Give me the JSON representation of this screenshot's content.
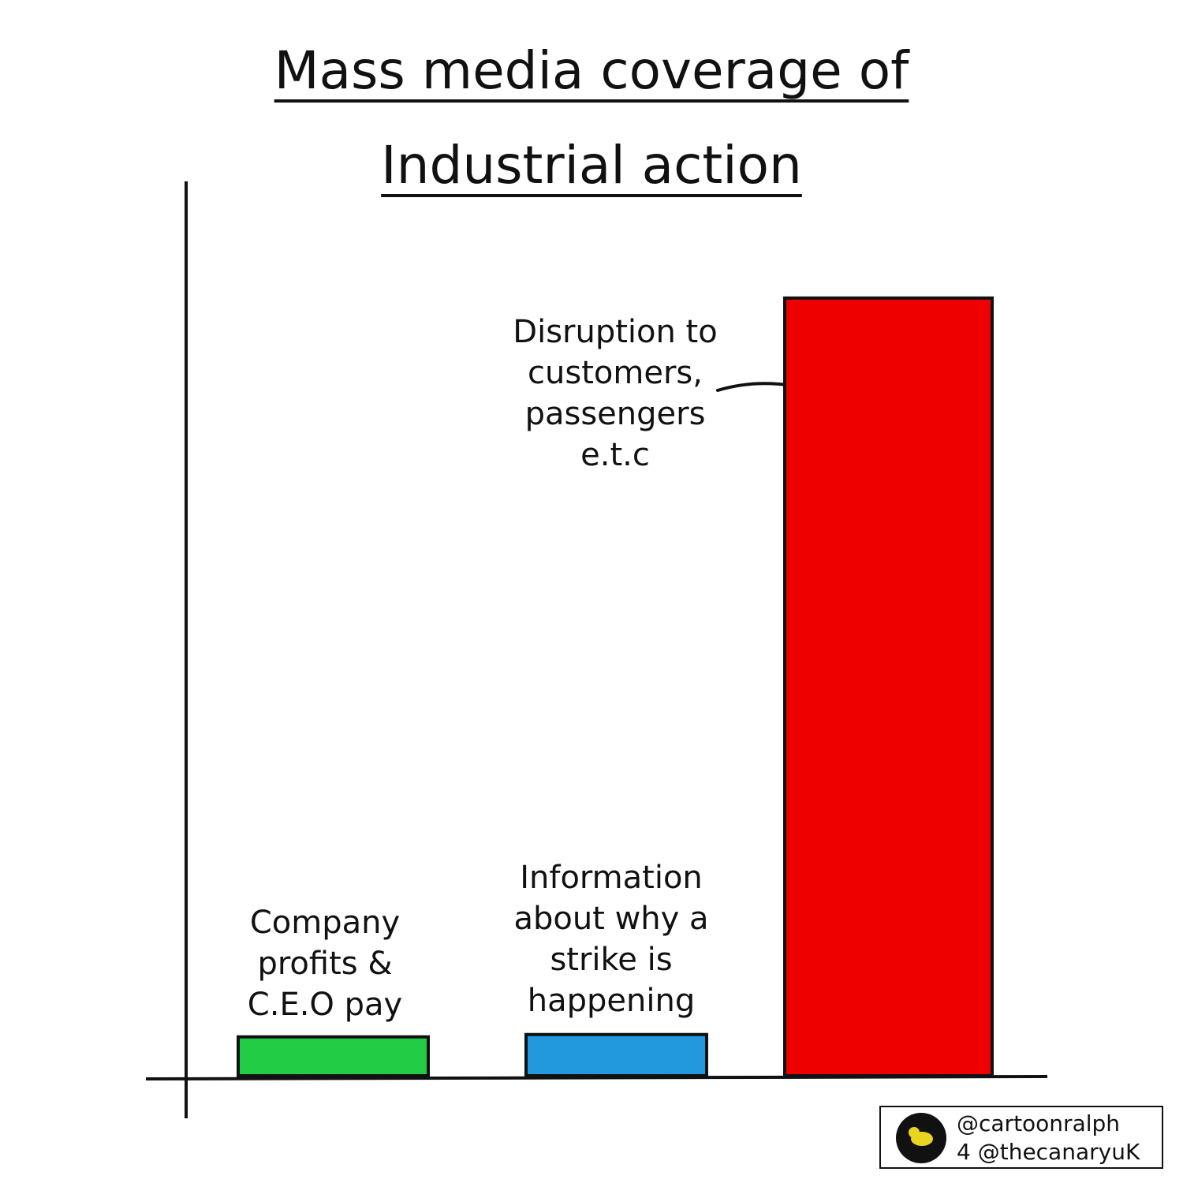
{
  "chart_data": {
    "type": "bar",
    "title": "Mass media coverage of Industrial action",
    "categories": [
      "Company profits & C.E.O pay",
      "Information about why a strike is happening",
      "Disruption to customers, passengers e.t.c"
    ],
    "values": [
      5,
      5.3,
      100
    ],
    "colors": [
      "#22cc44",
      "#2299dd",
      "#ee0000"
    ],
    "ylim": [
      0,
      115
    ]
  },
  "credit": [
    "@cartoonralph",
    "4 @thecanaryuK"
  ]
}
